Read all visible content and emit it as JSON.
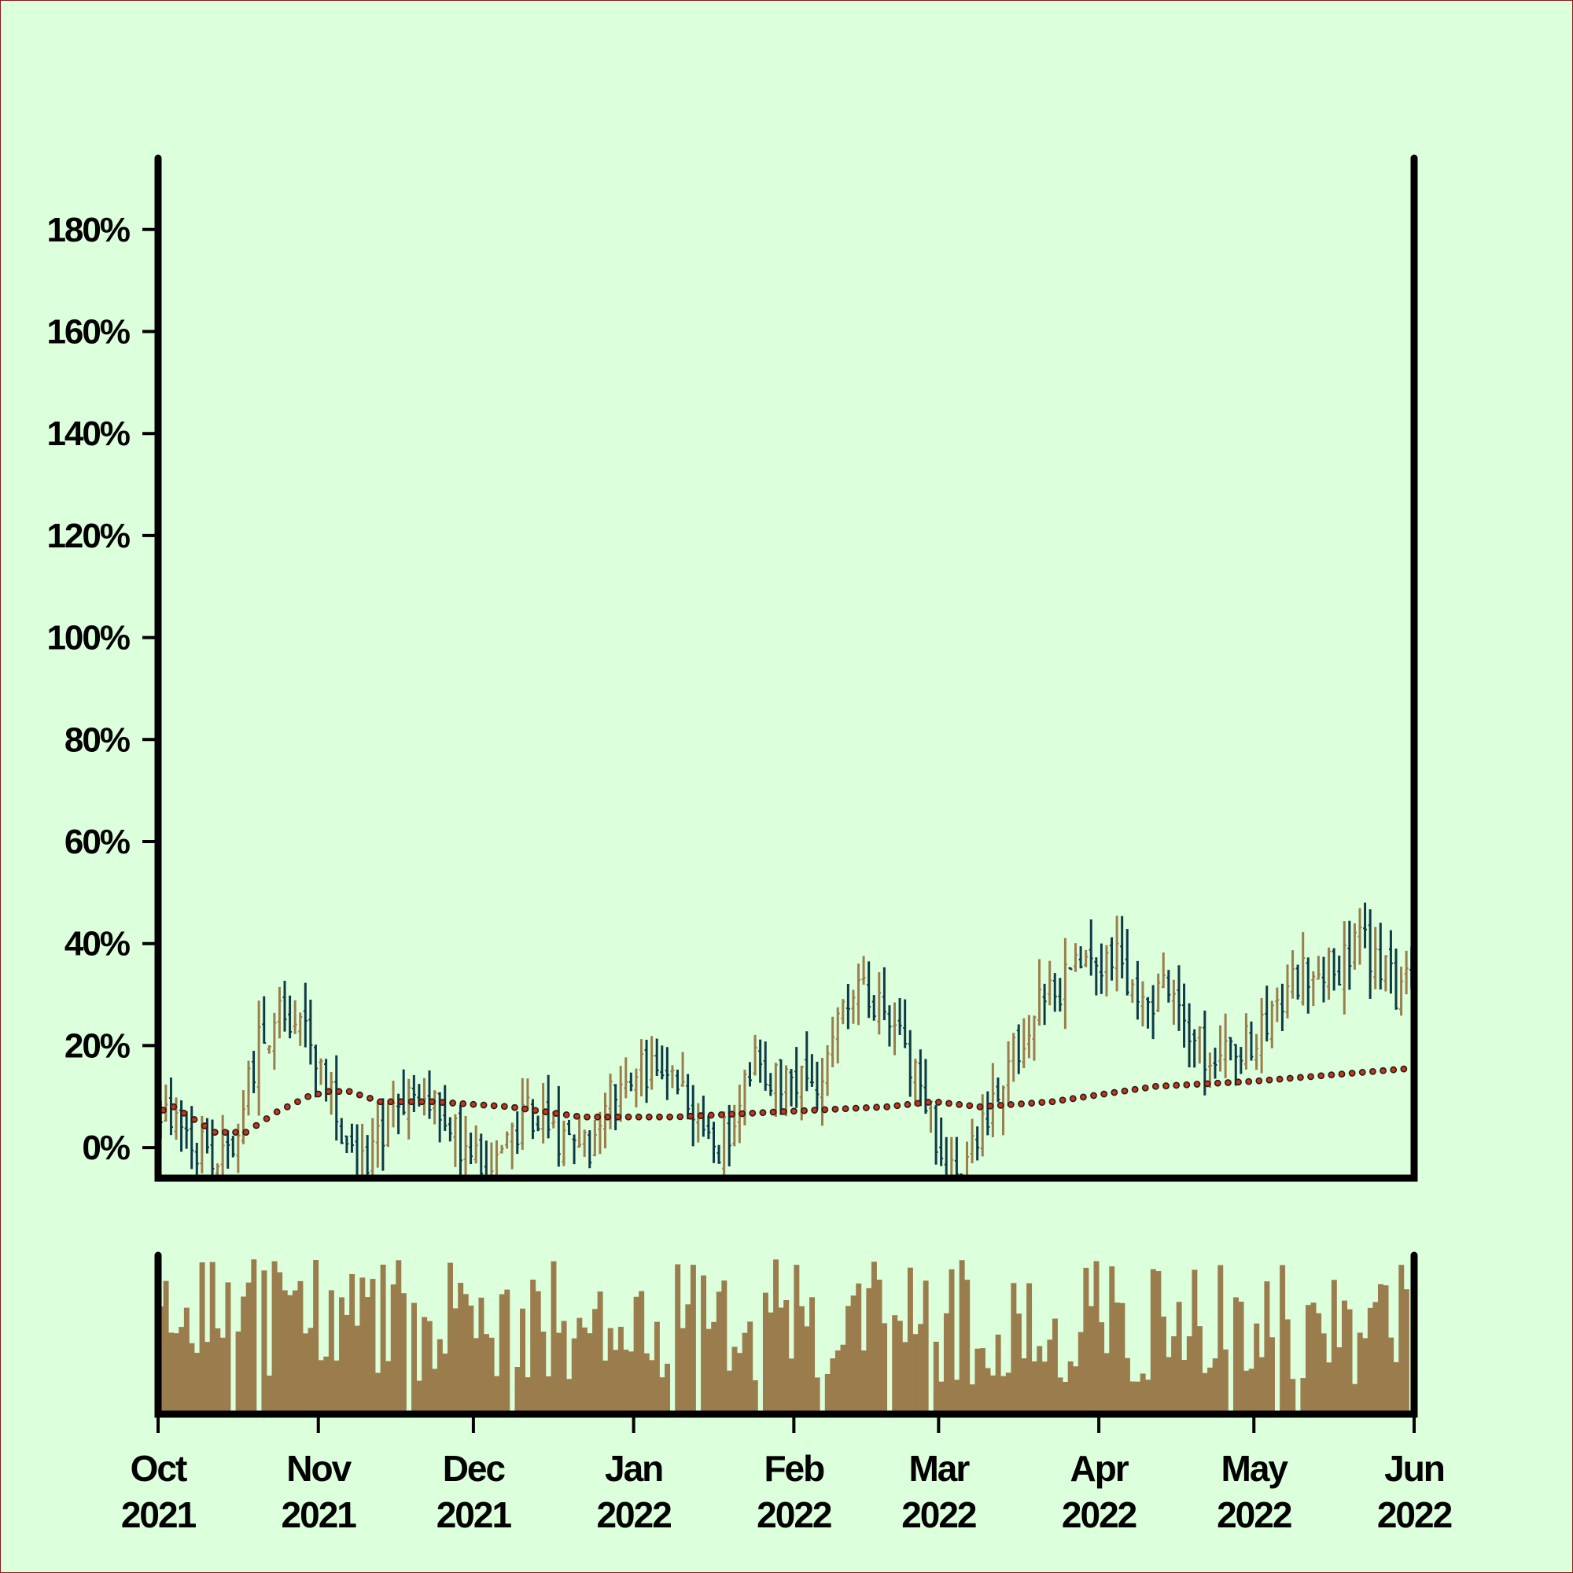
{
  "colors": {
    "background": "#dcffdc",
    "border": "#8b1a1a",
    "frame": "#000000",
    "up_bar": "#9b7d4d",
    "down_bar": "#0e3a48",
    "volume": "#9b7d4d",
    "moving_average_fill": "#c0391b",
    "moving_average_edge": "#2a1a1a"
  },
  "chart_data": {
    "type": "ohlc",
    "title": "",
    "xlabel": "",
    "ylabel": "",
    "y_axis": {
      "format": "percent",
      "range": [
        -0.06,
        1.94
      ],
      "ticks": [
        0,
        0.2,
        0.4,
        0.6,
        0.8,
        1.0,
        1.2,
        1.4,
        1.6,
        1.8
      ],
      "tick_labels": [
        "0%",
        "20%",
        "40%",
        "60%",
        "80%",
        "100%",
        "120%",
        "140%",
        "160%",
        "180%"
      ]
    },
    "x_axis": {
      "range": [
        "2021-10-01",
        "2022-06-01"
      ],
      "ticks": [
        {
          "date": "2021-10-01",
          "month": "Oct",
          "year": "2021"
        },
        {
          "date": "2021-11-01",
          "month": "Nov",
          "year": "2021"
        },
        {
          "date": "2021-12-01",
          "month": "Dec",
          "year": "2021"
        },
        {
          "date": "2022-01-01",
          "month": "Jan",
          "year": "2022"
        },
        {
          "date": "2022-02-01",
          "month": "Feb",
          "year": "2022"
        },
        {
          "date": "2022-03-01",
          "month": "Mar",
          "year": "2022"
        },
        {
          "date": "2022-04-01",
          "month": "Apr",
          "year": "2022"
        },
        {
          "date": "2022-05-01",
          "month": "May",
          "year": "2022"
        },
        {
          "date": "2022-06-01",
          "month": "Jun",
          "year": "2022"
        }
      ]
    },
    "grid": false,
    "legend": "none",
    "price_anchors": [
      [
        "2021-10-01",
        0.08
      ],
      [
        "2021-10-05",
        0.06
      ],
      [
        "2021-10-09",
        0.0
      ],
      [
        "2021-10-13",
        -0.04
      ],
      [
        "2021-10-17",
        0.06
      ],
      [
        "2021-10-21",
        0.22
      ],
      [
        "2021-10-25",
        0.26
      ],
      [
        "2021-10-29",
        0.22
      ],
      [
        "2021-11-02",
        0.14
      ],
      [
        "2021-11-06",
        0.02
      ],
      [
        "2021-11-10",
        -0.05
      ],
      [
        "2021-11-14",
        0.04
      ],
      [
        "2021-11-18",
        0.1
      ],
      [
        "2021-11-22",
        0.12
      ],
      [
        "2021-11-26",
        0.04
      ],
      [
        "2021-11-30",
        -0.02
      ],
      [
        "2021-12-04",
        -0.04
      ],
      [
        "2021-12-08",
        0.02
      ],
      [
        "2021-12-12",
        0.07
      ],
      [
        "2021-12-16",
        0.03
      ],
      [
        "2021-12-20",
        -0.02
      ],
      [
        "2021-12-24",
        0.0
      ],
      [
        "2021-12-28",
        0.12
      ],
      [
        "2022-01-01",
        0.15
      ],
      [
        "2022-01-05",
        0.16
      ],
      [
        "2022-01-09",
        0.14
      ],
      [
        "2022-01-13",
        0.08
      ],
      [
        "2022-01-17",
        0.0
      ],
      [
        "2022-01-21",
        0.06
      ],
      [
        "2022-01-25",
        0.18
      ],
      [
        "2022-01-29",
        0.13
      ],
      [
        "2022-02-02",
        0.12
      ],
      [
        "2022-02-06",
        0.14
      ],
      [
        "2022-02-10",
        0.25
      ],
      [
        "2022-02-14",
        0.3
      ],
      [
        "2022-02-18",
        0.26
      ],
      [
        "2022-02-22",
        0.2
      ],
      [
        "2022-02-26",
        0.1
      ],
      [
        "2022-03-02",
        -0.02
      ],
      [
        "2022-03-06",
        -0.05
      ],
      [
        "2022-03-10",
        0.06
      ],
      [
        "2022-03-14",
        0.16
      ],
      [
        "2022-03-18",
        0.22
      ],
      [
        "2022-03-22",
        0.3
      ],
      [
        "2022-03-26",
        0.33
      ],
      [
        "2022-03-30",
        0.36
      ],
      [
        "2022-04-03",
        0.38
      ],
      [
        "2022-04-07",
        0.33
      ],
      [
        "2022-04-11",
        0.3
      ],
      [
        "2022-04-15",
        0.32
      ],
      [
        "2022-04-19",
        0.22
      ],
      [
        "2022-04-23",
        0.16
      ],
      [
        "2022-04-27",
        0.18
      ],
      [
        "2022-05-01",
        0.22
      ],
      [
        "2022-05-05",
        0.28
      ],
      [
        "2022-05-09",
        0.33
      ],
      [
        "2022-05-13",
        0.36
      ],
      [
        "2022-05-17",
        0.34
      ],
      [
        "2022-05-21",
        0.41
      ],
      [
        "2022-05-25",
        0.37
      ],
      [
        "2022-05-29",
        0.3
      ],
      [
        "2022-05-31",
        0.32
      ]
    ],
    "moving_average_anchors": [
      [
        "2021-10-01",
        0.07
      ],
      [
        "2021-10-04",
        0.08
      ],
      [
        "2021-10-12",
        0.03
      ],
      [
        "2021-10-18",
        0.03
      ],
      [
        "2021-10-24",
        0.07
      ],
      [
        "2021-10-30",
        0.1
      ],
      [
        "2021-11-03",
        0.11
      ],
      [
        "2021-11-07",
        0.11
      ],
      [
        "2021-11-13",
        0.09
      ],
      [
        "2021-11-23",
        0.09
      ],
      [
        "2021-12-08",
        0.08
      ],
      [
        "2021-12-22",
        0.06
      ],
      [
        "2022-01-09",
        0.06
      ],
      [
        "2022-01-29",
        0.07
      ],
      [
        "2022-02-19",
        0.08
      ],
      [
        "2022-02-28",
        0.09
      ],
      [
        "2022-03-09",
        0.08
      ],
      [
        "2022-03-23",
        0.09
      ],
      [
        "2022-04-12",
        0.12
      ],
      [
        "2022-05-01",
        0.13
      ],
      [
        "2022-05-31",
        0.155
      ]
    ],
    "volume": {
      "baseline": 0.18,
      "amplitude": 0.82,
      "missing_days": 14
    }
  }
}
